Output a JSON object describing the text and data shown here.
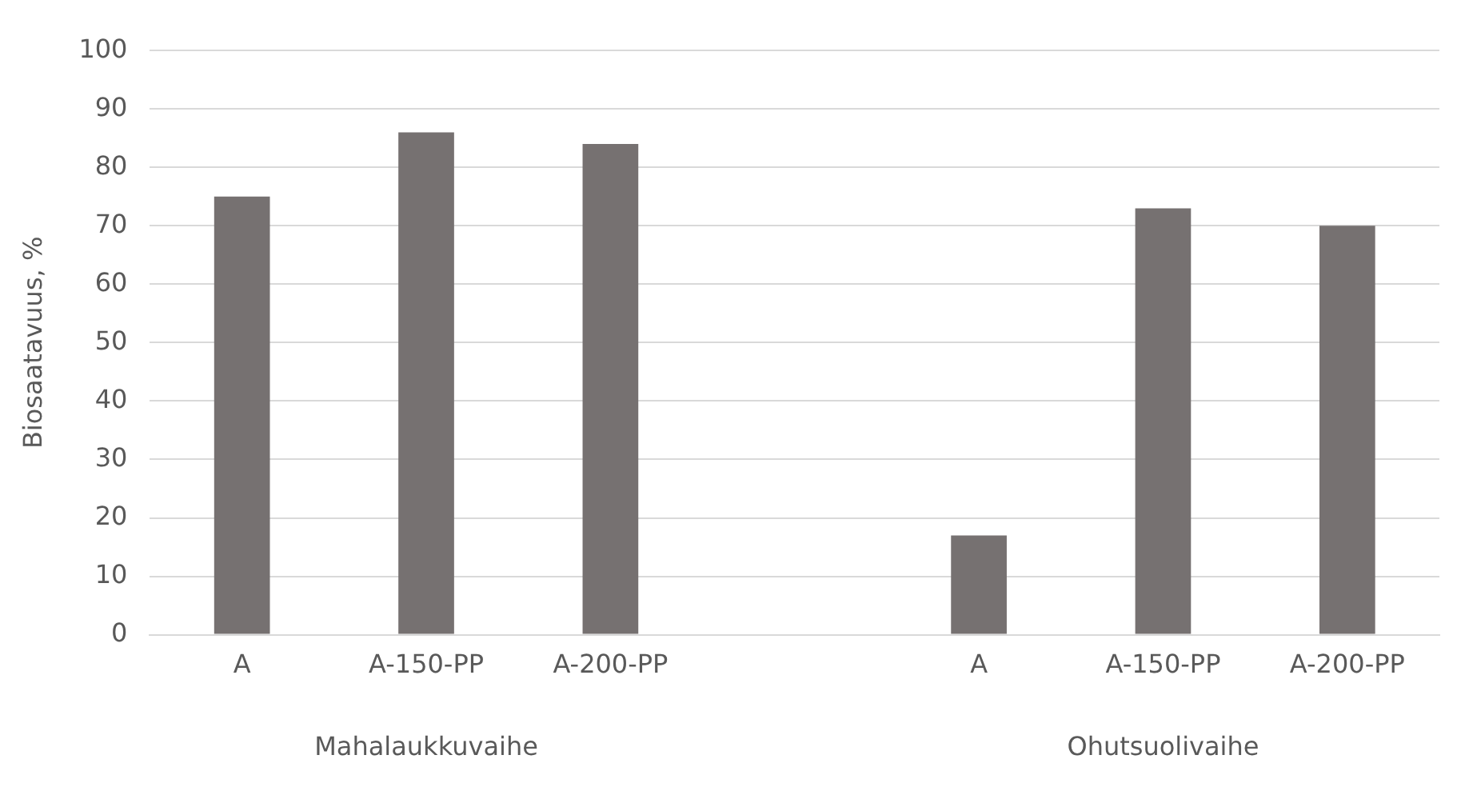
{
  "chart_data": {
    "type": "bar",
    "ylabel": "Biosaatavuus, %",
    "categories": [
      "A",
      "A-150-PP",
      "A-200-PP",
      null,
      "A",
      "A-150-PP",
      "A-200-PP"
    ],
    "values": [
      75,
      86,
      84,
      null,
      17,
      73,
      70
    ],
    "color": "#767171",
    "ylim": [
      0,
      100
    ],
    "yticks": [
      0,
      10,
      20,
      30,
      40,
      50,
      60,
      70,
      80,
      90,
      100
    ],
    "grid": "y",
    "legend": false,
    "annotations": [
      "Mahalaukkuvaihe",
      "Ohutsuolivaihe"
    ]
  }
}
